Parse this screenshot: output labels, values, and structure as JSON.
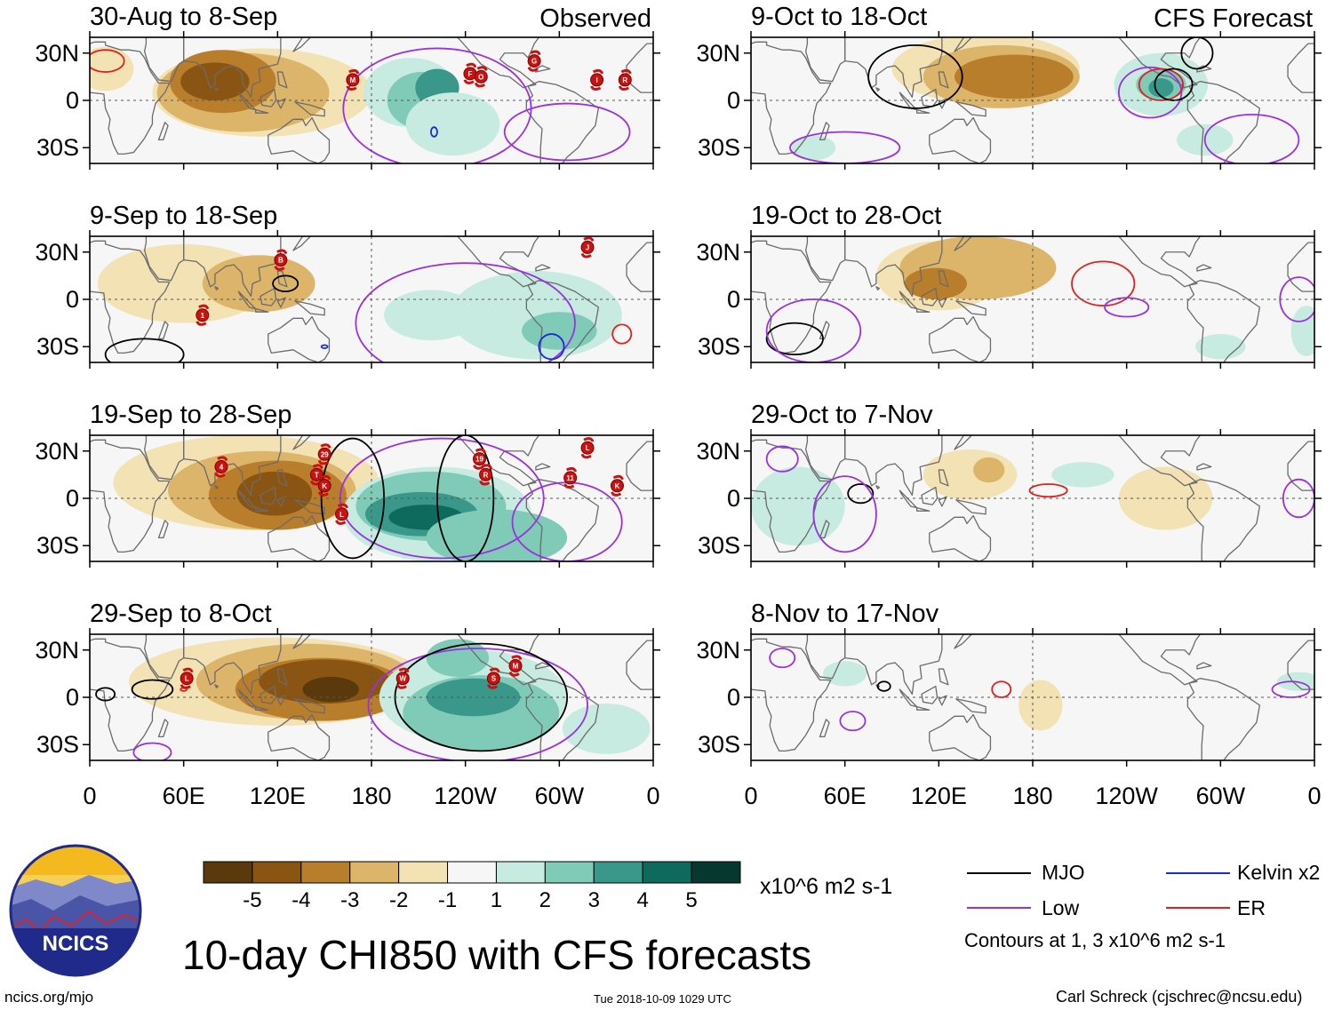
{
  "figure": {
    "title": "10-day CHI850 with CFS forecasts",
    "source": "ncics.org/mjo",
    "timestamp": "Tue 2018-10-09 1029 UTC",
    "author": "Carl Schreck (cjschrec@ncsu.edu)",
    "logo_text": "NCICS"
  },
  "headers": {
    "observed": "Observed",
    "forecast": "CFS Forecast"
  },
  "axes": {
    "y_ticks": [
      "30N",
      "0",
      "30S"
    ],
    "x_ticks": [
      "0",
      "60E",
      "120E",
      "180",
      "120W",
      "60W",
      "0"
    ]
  },
  "panels": [
    {
      "period": "30-Aug to 8-Sep",
      "type": "observed"
    },
    {
      "period": "9-Sep to 18-Sep",
      "type": "observed"
    },
    {
      "period": "19-Sep to 28-Sep",
      "type": "observed"
    },
    {
      "period": "29-Sep to 8-Oct",
      "type": "observed"
    },
    {
      "period": "9-Oct to 18-Oct",
      "type": "forecast"
    },
    {
      "period": "19-Oct to 28-Oct",
      "type": "forecast"
    },
    {
      "period": "29-Oct to 7-Nov",
      "type": "forecast"
    },
    {
      "period": "8-Nov to 17-Nov",
      "type": "forecast"
    }
  ],
  "colorbar": {
    "labels": [
      "-5",
      "-4",
      "-3",
      "-2",
      "-1",
      "1",
      "2",
      "3",
      "4",
      "5"
    ],
    "colors": [
      "#5a3a0c",
      "#8a5512",
      "#b97e2c",
      "#dcb56a",
      "#f2e2b4",
      "#f6f6f6",
      "#c7ebe0",
      "#7fcbb8",
      "#39988a",
      "#0f6a5e",
      "#06382f"
    ],
    "units": "x10^6 m2 s-1"
  },
  "legend": {
    "items": [
      {
        "label": "MJO",
        "color": "#000000"
      },
      {
        "label": "Kelvin x2",
        "color": "#1a2ad8"
      },
      {
        "label": "Low",
        "color": "#9b30e0"
      },
      {
        "label": "ER",
        "color": "#e0201c"
      }
    ],
    "note": "Contours at 1, 3 x10^6 m2 s-1"
  },
  "colors": {
    "brown_light": "#f2e2b4",
    "brown_mid": "#dcb56a",
    "brown_dark": "#b97e2c",
    "brown_darker": "#8a5512",
    "brown_darkest": "#5a3a0c",
    "green_light": "#c7ebe0",
    "green_mid": "#7fcbb8",
    "green_dark": "#39988a",
    "green_darker": "#0f6a5e",
    "mjo": "#000000",
    "low": "#9b30e0",
    "kelvin": "#1a2ad8",
    "er": "#e0201c",
    "land": "#6b6b6b",
    "storm": "#cc1111"
  },
  "storms": [
    {
      "panel": 0,
      "label": "M"
    },
    {
      "panel": 0,
      "label": "F"
    },
    {
      "panel": 0,
      "label": "O"
    },
    {
      "panel": 0,
      "label": "G"
    },
    {
      "panel": 0,
      "label": "I"
    },
    {
      "panel": 0,
      "label": "R"
    },
    {
      "panel": 1,
      "label": "B"
    },
    {
      "panel": 1,
      "label": "1"
    },
    {
      "panel": 1,
      "label": "J"
    },
    {
      "panel": 2,
      "label": "4"
    },
    {
      "panel": 2,
      "label": "29"
    },
    {
      "panel": 2,
      "label": "T"
    },
    {
      "panel": 2,
      "label": "K"
    },
    {
      "panel": 2,
      "label": "L"
    },
    {
      "panel": 2,
      "label": "19"
    },
    {
      "panel": 2,
      "label": "R"
    },
    {
      "panel": 2,
      "label": "L"
    },
    {
      "panel": 2,
      "label": "11"
    },
    {
      "panel": 2,
      "label": "K"
    },
    {
      "panel": 3,
      "label": "L"
    },
    {
      "panel": 3,
      "label": "W"
    },
    {
      "panel": 3,
      "label": "S"
    },
    {
      "panel": 3,
      "label": "M"
    }
  ]
}
